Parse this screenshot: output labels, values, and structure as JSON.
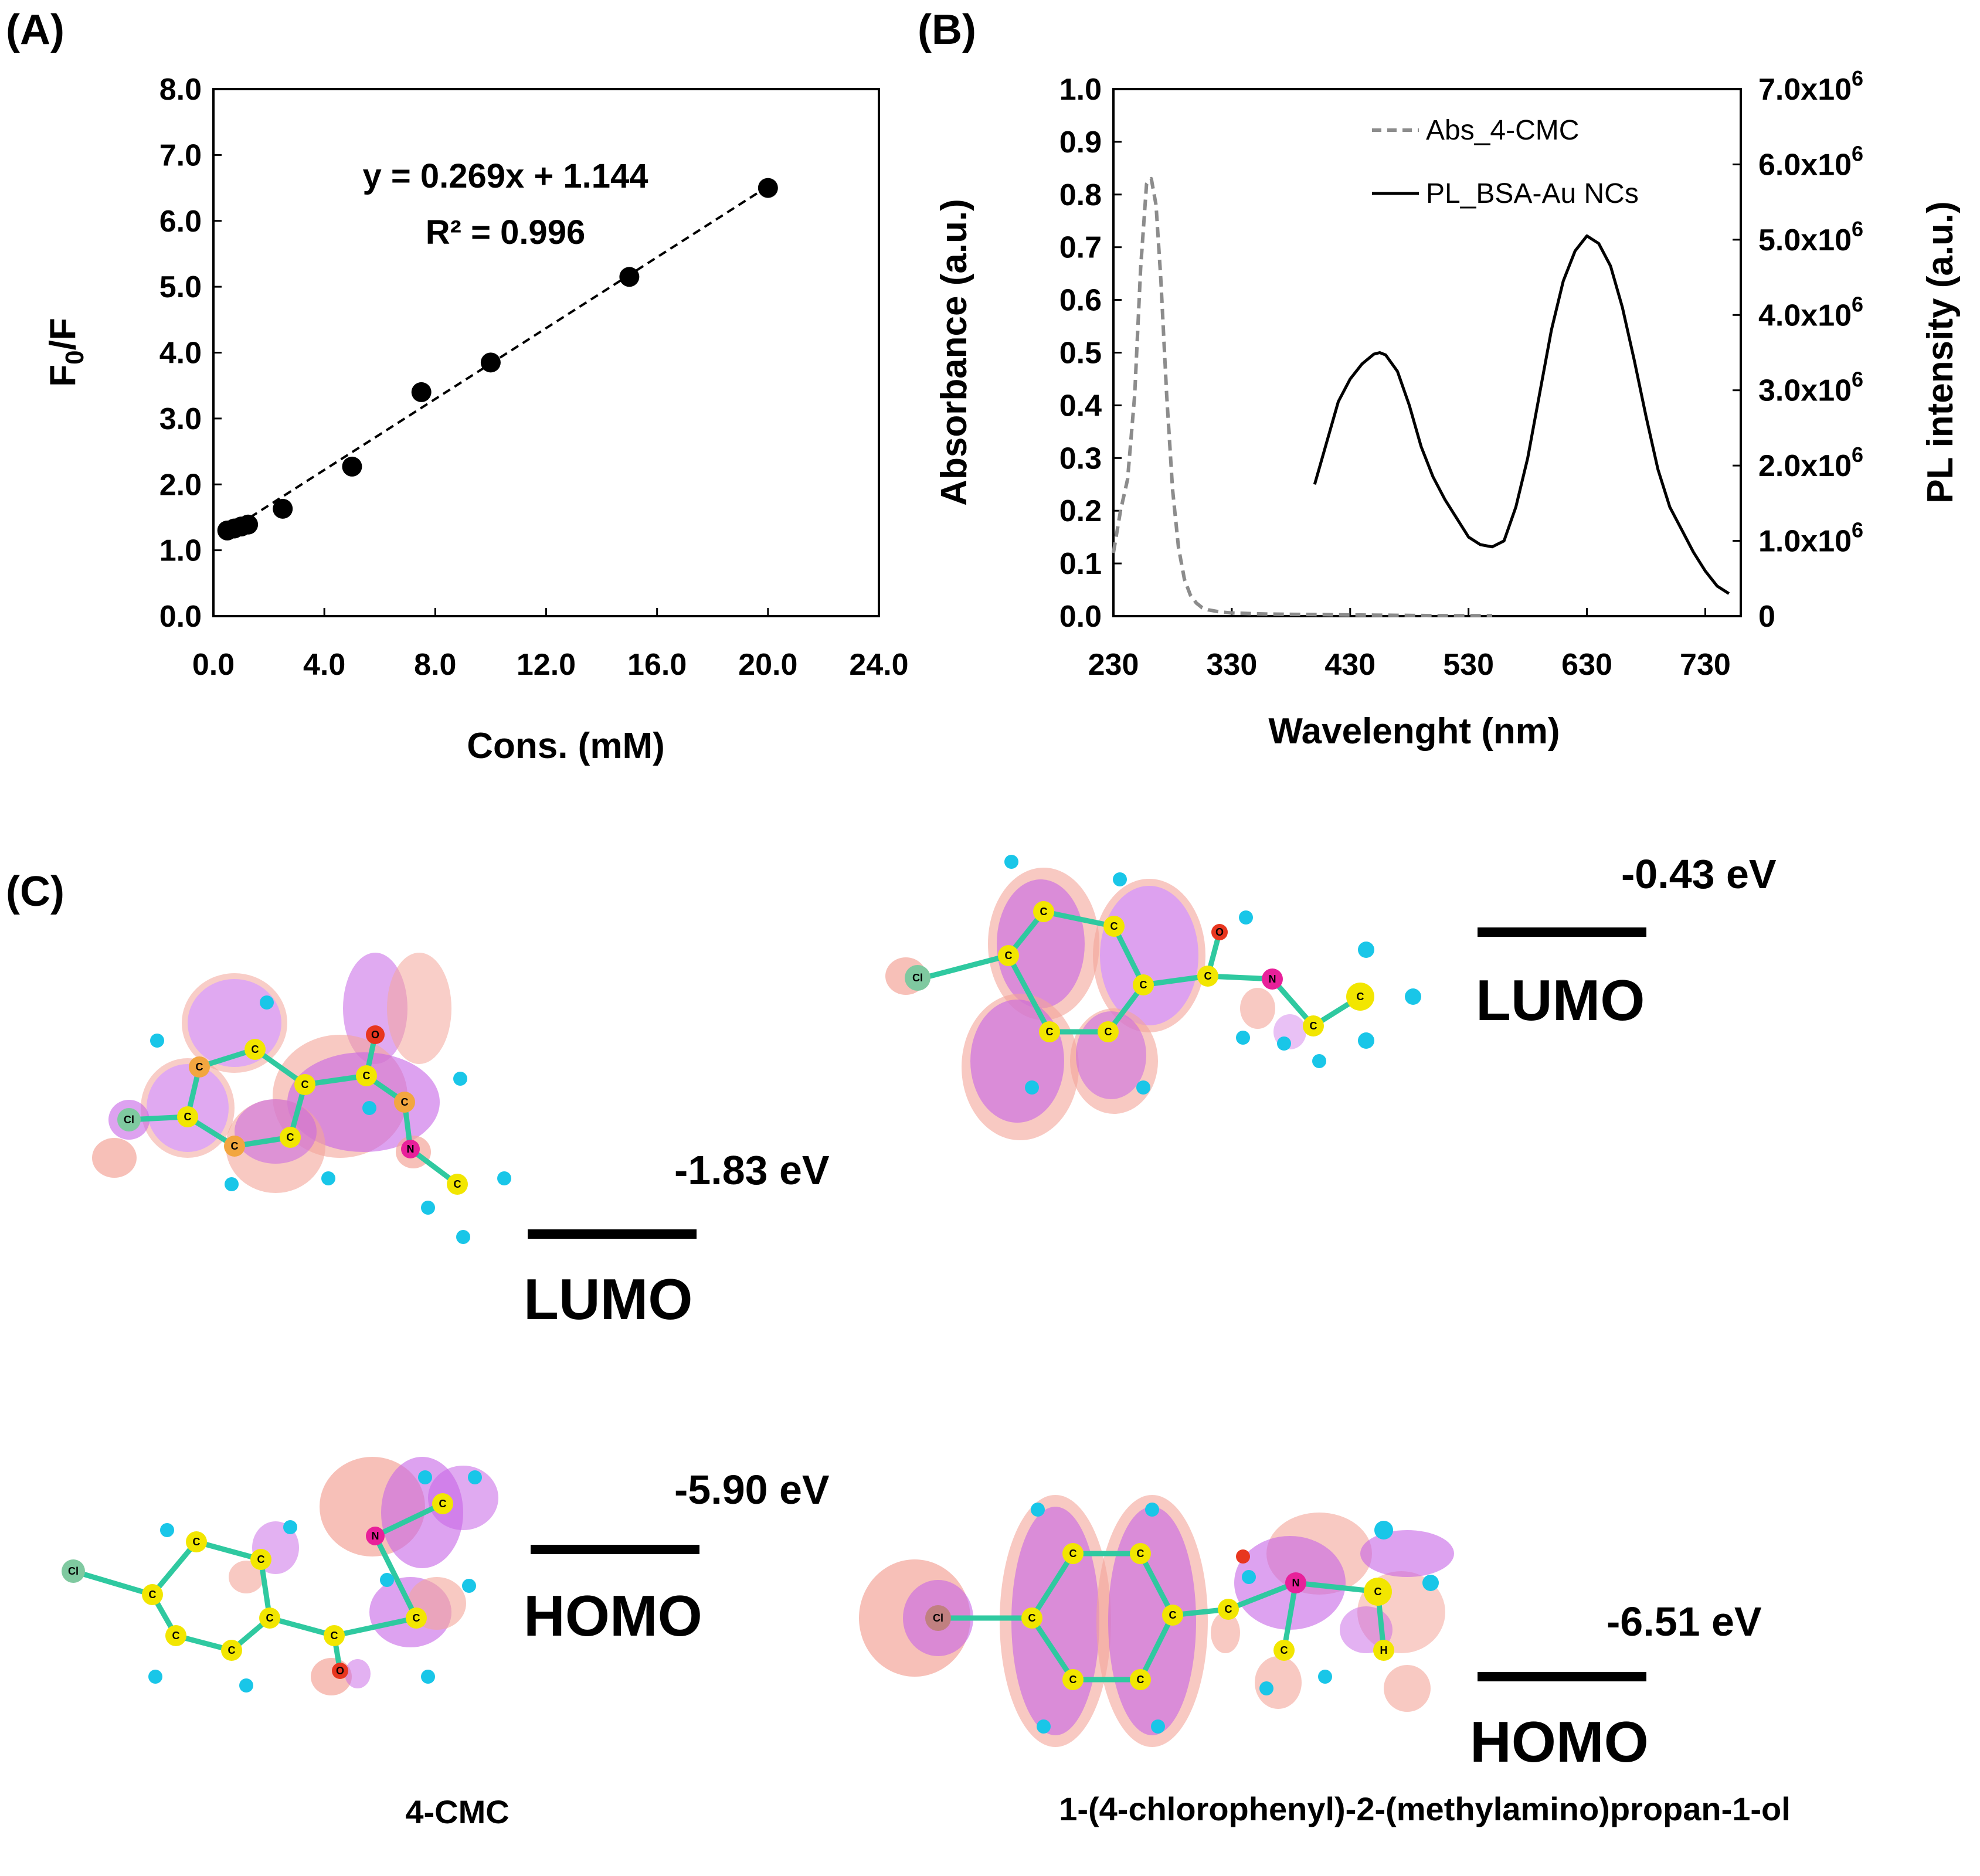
{
  "panels": {
    "a": "(A)",
    "b": "(B)",
    "c": "(C)"
  },
  "chart_data": [
    {
      "type": "scatter",
      "panel": "(A)",
      "xlabel": "Cons. (mM)",
      "ylabel_main": "F",
      "ylabel_sub": "0",
      "ylabel_rest": "/F",
      "xlim": [
        0,
        24
      ],
      "ylim": [
        0,
        8
      ],
      "xticks": [
        0,
        4,
        8,
        12,
        16,
        20,
        24
      ],
      "yticks": [
        0,
        1,
        2,
        3,
        4,
        5,
        6,
        7,
        8
      ],
      "xtick_labels": [
        "0.0",
        "4.0",
        "8.0",
        "12.0",
        "16.0",
        "20.0",
        "24.0"
      ],
      "ytick_labels": [
        "0.0",
        "1.0",
        "2.0",
        "3.0",
        "4.0",
        "5.0",
        "6.0",
        "7.0",
        "8.0"
      ],
      "points": [
        {
          "x": 0.5,
          "y": 1.3
        },
        {
          "x": 0.75,
          "y": 1.33
        },
        {
          "x": 1.0,
          "y": 1.36
        },
        {
          "x": 1.25,
          "y": 1.39
        },
        {
          "x": 2.5,
          "y": 1.63
        },
        {
          "x": 5.0,
          "y": 2.27
        },
        {
          "x": 7.5,
          "y": 3.4
        },
        {
          "x": 10.0,
          "y": 3.85
        },
        {
          "x": 15.0,
          "y": 5.15
        },
        {
          "x": 20.0,
          "y": 6.5
        }
      ],
      "fit": {
        "slope": 0.269,
        "intercept": 1.144,
        "x_range": [
          0.5,
          20.0
        ]
      },
      "equation": "y = 0.269x + 1.144",
      "r2": "R² = 0.996"
    },
    {
      "type": "line",
      "panel": "(B)",
      "xlabel": "Wavelenght (nm)",
      "ylabel": "Absorbance (a.u.)",
      "ylabel_right": "PL intensity (a.u.)",
      "xlim": [
        230,
        760
      ],
      "ylim": [
        0,
        1.0
      ],
      "ylim_right": [
        0,
        7000000
      ],
      "xticks": [
        230,
        330,
        430,
        530,
        630,
        730
      ],
      "yticks": [
        0,
        0.1,
        0.2,
        0.3,
        0.4,
        0.5,
        0.6,
        0.7,
        0.8,
        0.9,
        1.0
      ],
      "ytick_labels": [
        "0.0",
        "0.1",
        "0.2",
        "0.3",
        "0.4",
        "0.5",
        "0.6",
        "0.7",
        "0.8",
        "0.9",
        "1.0"
      ],
      "yticks_right": [
        0,
        1000000,
        2000000,
        3000000,
        4000000,
        5000000,
        6000000,
        7000000
      ],
      "ytick_labels_right": [
        {
          "base": "0",
          "exp": ""
        },
        {
          "base": "1.0x10",
          "exp": "6"
        },
        {
          "base": "2.0x10",
          "exp": "6"
        },
        {
          "base": "3.0x10",
          "exp": "6"
        },
        {
          "base": "4.0x10",
          "exp": "6"
        },
        {
          "base": "5.0x10",
          "exp": "6"
        },
        {
          "base": "6.0x10",
          "exp": "6"
        },
        {
          "base": "7.0x10",
          "exp": "6"
        }
      ],
      "series": [
        {
          "name": "Abs_4-CMC",
          "axis": "left",
          "color": "#8c8c8c",
          "dash": true,
          "x": [
            230,
            236,
            242,
            248,
            253,
            258,
            262,
            266,
            270,
            275,
            280,
            285,
            290,
            295,
            300,
            305,
            310,
            320,
            330,
            360,
            400,
            450,
            500,
            550
          ],
          "y": [
            0.12,
            0.2,
            0.26,
            0.42,
            0.66,
            0.82,
            0.83,
            0.78,
            0.64,
            0.42,
            0.24,
            0.13,
            0.07,
            0.04,
            0.025,
            0.016,
            0.012,
            0.008,
            0.006,
            0.004,
            0.003,
            0.002,
            0.001,
            0.001
          ]
        },
        {
          "name": "PL_BSA-Au NCs",
          "axis": "right",
          "color": "#000000",
          "dash": false,
          "x": [
            400,
            410,
            420,
            430,
            440,
            450,
            455,
            460,
            470,
            480,
            490,
            500,
            510,
            520,
            530,
            540,
            550,
            560,
            570,
            580,
            590,
            600,
            610,
            620,
            630,
            640,
            650,
            660,
            670,
            680,
            690,
            700,
            710,
            720,
            730,
            740,
            750
          ],
          "y": [
            1750000,
            2300000,
            2850000,
            3150000,
            3350000,
            3480000,
            3500000,
            3470000,
            3250000,
            2800000,
            2250000,
            1850000,
            1550000,
            1300000,
            1050000,
            950000,
            920000,
            1000000,
            1450000,
            2100000,
            2950000,
            3800000,
            4450000,
            4850000,
            5050000,
            4950000,
            4650000,
            4100000,
            3400000,
            2650000,
            1950000,
            1450000,
            1150000,
            850000,
            600000,
            400000,
            300000
          ]
        }
      ]
    }
  ],
  "energy_diagram": {
    "molecule_left": {
      "name": "4-CMC",
      "lumo": {
        "label": "LUMO",
        "energy": "-1.83 eV"
      },
      "homo": {
        "label": "HOMO",
        "energy": "-5.90 eV"
      }
    },
    "molecule_right": {
      "name": "1-(4-chlorophenyl)-2-(methylamino)propan-1-ol",
      "lumo": {
        "label": "LUMO",
        "energy": "-0.43 eV"
      },
      "homo": {
        "label": "HOMO",
        "energy": "-6.51 eV"
      }
    }
  },
  "atom_labels": {
    "carbon": "C",
    "hydrogen": "H",
    "nitrogen": "N",
    "oxygen": "O",
    "chlorine": "Cl"
  },
  "colors": {
    "carbon": "#f2e600",
    "hydrogen": "#19c6e8",
    "nitrogen": "#e8209a",
    "oxygen": "#e8361f",
    "chlorine": "#7fc9a0",
    "orbital_pos": "#c764e6",
    "orbital_neg": "#f4a59a",
    "dashed_series": "#8c8c8c"
  }
}
